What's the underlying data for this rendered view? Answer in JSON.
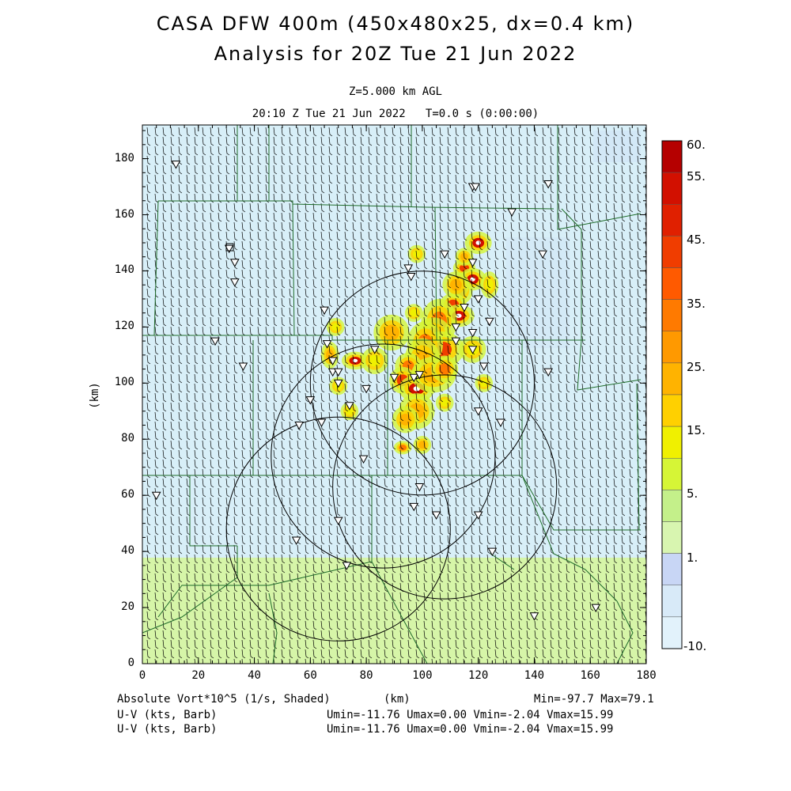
{
  "title_line1": "CASA DFW 400m (450x480x25, dx=0.4 km)",
  "title_line2": "Analysis for 20Z Tue 21 Jun 2022",
  "level_label": "Z=5.000 km AGL",
  "time_label": "20:10 Z Tue 21 Jun 2022   T=0.0 s (0:00:00)",
  "x_axis": {
    "label": "(km)",
    "ticks": [
      "0",
      "20",
      "40",
      "60",
      "80",
      "100",
      "120",
      "140",
      "160",
      "180"
    ],
    "range": [
      0,
      180
    ]
  },
  "y_axis": {
    "label": "(km)",
    "ticks": [
      "0",
      "20",
      "40",
      "60",
      "80",
      "100",
      "120",
      "140",
      "160",
      "180"
    ],
    "range": [
      0,
      192
    ]
  },
  "colorbar": {
    "labels": [
      "60.",
      "55.",
      "45.",
      "35.",
      "25.",
      "15.",
      "5.",
      "1.",
      "-10."
    ],
    "colors": [
      "#b50000",
      "#d21000",
      "#e02000",
      "#f03d00",
      "#ff5a00",
      "#ff7a00",
      "#ff9900",
      "#ffb300",
      "#ffd000",
      "#f0f000",
      "#d6f536",
      "#c4f08a",
      "#d8f5b0",
      "#c8d6f5",
      "#d8eaf8",
      "#e2f2fb"
    ]
  },
  "footer": {
    "left1": "Absolute Vort*10^5 (1/s, Shaded)",
    "center1": "(km)",
    "right1": "Min=-97.7 Max=79.1",
    "left2": "U-V (kts, Barb)",
    "right2": "Umin=-11.76 Umax=0.00 Vmin=-2.04 Vmax=15.99",
    "left3": "U-V (kts, Barb)",
    "right3": "Umin=-11.76 Umax=0.00 Vmin=-2.04 Vmax=15.99"
  },
  "radars": [
    {
      "cx": 70,
      "cy": 48
    },
    {
      "cx": 100,
      "cy": 100
    },
    {
      "cx": 86,
      "cy": 74
    },
    {
      "cx": 108,
      "cy": 63
    }
  ],
  "radar_range_km": 40,
  "station_markers": [
    [
      12,
      178
    ],
    [
      31,
      148
    ],
    [
      33,
      143
    ],
    [
      33,
      136
    ],
    [
      26,
      115
    ],
    [
      36,
      106
    ],
    [
      65,
      126
    ],
    [
      68,
      108
    ],
    [
      68,
      104
    ],
    [
      70,
      104
    ],
    [
      74,
      92
    ],
    [
      80,
      98
    ],
    [
      83,
      112
    ],
    [
      95,
      141
    ],
    [
      96,
      138
    ],
    [
      108,
      146
    ],
    [
      118,
      143
    ],
    [
      120,
      130
    ],
    [
      115,
      127
    ],
    [
      112,
      120
    ],
    [
      118,
      118
    ],
    [
      112,
      115
    ],
    [
      118,
      112
    ],
    [
      122,
      106
    ],
    [
      124,
      122
    ],
    [
      120,
      90
    ],
    [
      128,
      86
    ],
    [
      60,
      94
    ],
    [
      64,
      86
    ],
    [
      66,
      114
    ],
    [
      70,
      100
    ],
    [
      90,
      102
    ],
    [
      97,
      102
    ],
    [
      99,
      103
    ],
    [
      79,
      73
    ],
    [
      99,
      63
    ],
    [
      105,
      53
    ],
    [
      120,
      53
    ],
    [
      97,
      56
    ],
    [
      70,
      51
    ],
    [
      55,
      44
    ],
    [
      73,
      35
    ],
    [
      125,
      40
    ],
    [
      140,
      17
    ],
    [
      162,
      20
    ],
    [
      145,
      104
    ],
    [
      143,
      146
    ],
    [
      145,
      171
    ],
    [
      118,
      170
    ],
    [
      119,
      170
    ],
    [
      132,
      161
    ],
    [
      5,
      60
    ],
    [
      56,
      85
    ]
  ],
  "storm_cells": [
    [
      120,
      150,
      3,
      2.5,
      60
    ],
    [
      115,
      141,
      2.5,
      2,
      45
    ],
    [
      118,
      137,
      3,
      2.5,
      60
    ],
    [
      114,
      133,
      2.5,
      3,
      40
    ],
    [
      111,
      128,
      3,
      2.5,
      45
    ],
    [
      113,
      124,
      3.5,
      2.5,
      60
    ],
    [
      106,
      122,
      4,
      5,
      40
    ],
    [
      104,
      117,
      4,
      4,
      35
    ],
    [
      107,
      112,
      5,
      4,
      45
    ],
    [
      101,
      114,
      4,
      5,
      35
    ],
    [
      100,
      108,
      4,
      5,
      30
    ],
    [
      95,
      106,
      3,
      3,
      40
    ],
    [
      93,
      101,
      3,
      3,
      50
    ],
    [
      98,
      98,
      4,
      3,
      55
    ],
    [
      104,
      103,
      5,
      4,
      30
    ],
    [
      98,
      90,
      4,
      4,
      25
    ],
    [
      94,
      87,
      3,
      3,
      30
    ],
    [
      93,
      77,
      2,
      1.5,
      40
    ],
    [
      100,
      78,
      2,
      2,
      30
    ],
    [
      76,
      108,
      3,
      2,
      55
    ],
    [
      67,
      110,
      2,
      3,
      30
    ],
    [
      70,
      99,
      2,
      2,
      15
    ],
    [
      74,
      90,
      2,
      2,
      15
    ],
    [
      83,
      108,
      3,
      3,
      20
    ],
    [
      89,
      118,
      4,
      4,
      25
    ],
    [
      112,
      135,
      3,
      3,
      30
    ],
    [
      124,
      135,
      2,
      3,
      15
    ],
    [
      108,
      105,
      3,
      3,
      40
    ],
    [
      118,
      112,
      3,
      3,
      20
    ],
    [
      122,
      100,
      2,
      2,
      15
    ],
    [
      108,
      93,
      2,
      2,
      20
    ],
    [
      69,
      120,
      2,
      2,
      15
    ],
    [
      97,
      125,
      2,
      2,
      15
    ],
    [
      98,
      146,
      2,
      2,
      15
    ],
    [
      115,
      145,
      2,
      2,
      30
    ]
  ]
}
